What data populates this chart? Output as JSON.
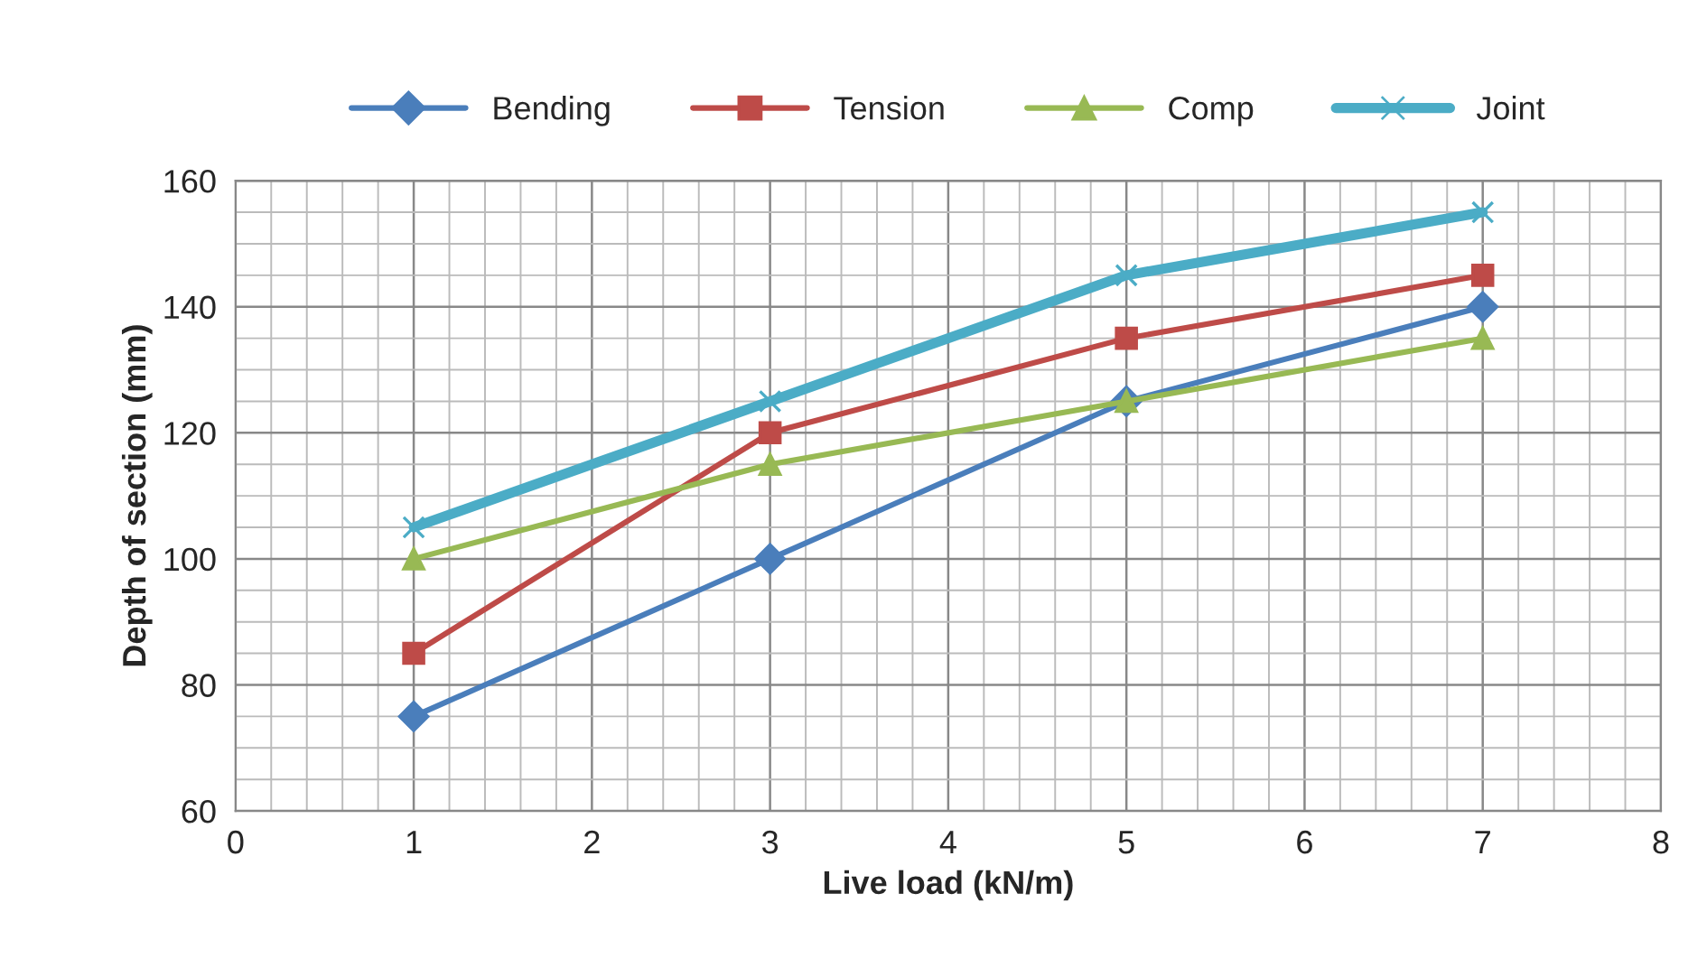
{
  "chart_data": {
    "type": "line",
    "xlabel": "Live load (kN/m)",
    "ylabel": "Depth of section (mm)",
    "x": [
      1,
      3,
      5,
      7
    ],
    "series": [
      {
        "name": "Bending",
        "color": "#4a7ebb",
        "values": [
          75,
          100,
          125,
          140
        ],
        "marker": "diamond"
      },
      {
        "name": "Tension",
        "color": "#be4b48",
        "values": [
          85,
          120,
          135,
          145
        ],
        "marker": "square"
      },
      {
        "name": "Comp",
        "color": "#98b954",
        "values": [
          100,
          115,
          125,
          135
        ],
        "marker": "triangle"
      },
      {
        "name": "Joint",
        "color": "#4bacc6",
        "values": [
          105,
          125,
          145,
          155
        ],
        "marker": "cross"
      }
    ],
    "xlim": [
      0,
      8
    ],
    "xticks": [
      0,
      1,
      2,
      3,
      4,
      5,
      6,
      7,
      8
    ],
    "ylim": [
      60,
      160
    ],
    "yticks": [
      60,
      80,
      100,
      120,
      140,
      160
    ],
    "grid": true,
    "legend": "top",
    "line_style": "solid"
  }
}
